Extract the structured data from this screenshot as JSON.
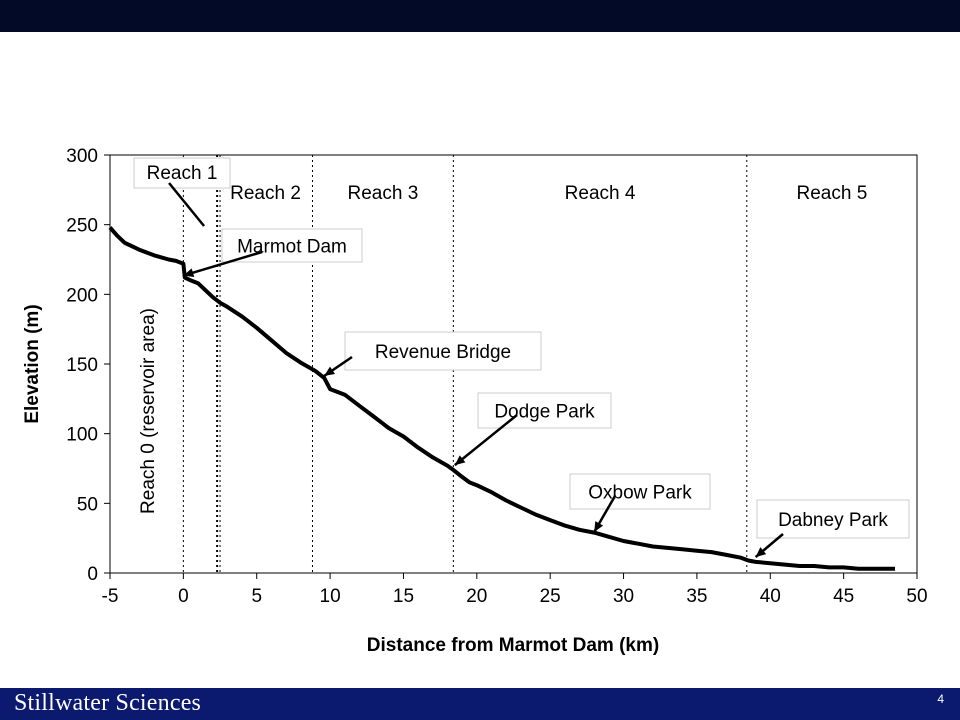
{
  "footer": {
    "logo": "Stillwater Sciences",
    "page_number": "4"
  },
  "chart_data": {
    "type": "line",
    "title": "",
    "xlabel": "Distance from Marmot Dam (km)",
    "ylabel": "Elevation (m)",
    "xlim": [
      -5,
      50
    ],
    "ylim": [
      0,
      300
    ],
    "x_ticks": [
      -5,
      0,
      5,
      10,
      15,
      20,
      25,
      30,
      35,
      40,
      45,
      50
    ],
    "y_ticks": [
      0,
      50,
      100,
      150,
      200,
      250,
      300
    ],
    "grid": false,
    "legend": "none",
    "series": [
      {
        "x": [
          -5,
          -4.5,
          -4,
          -3,
          -2,
          -1,
          -0.5,
          0,
          0.1,
          0.5,
          1,
          1.5,
          2,
          2.5,
          3,
          4,
          5,
          6,
          7,
          8,
          9,
          9.6,
          10,
          11,
          12,
          13,
          14,
          15,
          16,
          17,
          18,
          18.4,
          19,
          19.5,
          20,
          21,
          22,
          23,
          24,
          25,
          26,
          27,
          28,
          29,
          30,
          31,
          32,
          33,
          34,
          35,
          36,
          37,
          38,
          38.5,
          39,
          40,
          41,
          42,
          43,
          44,
          45,
          46,
          47,
          48,
          48.5
        ],
        "y": [
          248,
          242,
          237,
          232,
          228,
          225,
          224,
          222,
          212,
          210,
          208,
          203,
          198,
          194,
          191,
          184,
          176,
          167,
          158,
          151,
          145,
          140,
          132,
          128,
          120,
          112,
          104,
          98,
          90,
          83,
          77,
          74,
          69,
          65,
          63,
          58,
          52,
          47,
          42,
          38,
          34,
          31,
          29,
          26,
          23,
          21,
          19,
          18,
          17,
          16,
          15,
          13,
          11,
          9,
          8,
          7,
          6,
          5,
          5,
          4,
          4,
          3,
          3,
          3,
          3
        ]
      }
    ],
    "reach_boundaries": [
      0,
      2.5,
      8.8,
      18.4,
      38.4
    ],
    "dotted_boundary": 2.3,
    "reach_labels": [
      {
        "text": "Reach 1",
        "x": 1.0
      },
      {
        "text": "Reach 2",
        "x": 5.6
      },
      {
        "text": "Reach 3",
        "x": 13.6
      },
      {
        "text": "Reach 4",
        "x": 28.4
      },
      {
        "text": "Reach 5",
        "x": 44.2
      }
    ],
    "reach0_label": "Reach 0 (reservoir area)",
    "annotations": [
      {
        "text": "Marmot Dam",
        "point": [
          0,
          212
        ]
      },
      {
        "text": "Revenue Bridge",
        "point": [
          9.6,
          140
        ]
      },
      {
        "text": "Dodge Park",
        "point": [
          18.5,
          76
        ]
      },
      {
        "text": "Oxbow Park",
        "point": [
          28,
          28
        ]
      },
      {
        "text": "Dabney Park",
        "point": [
          39,
          10
        ]
      }
    ]
  }
}
